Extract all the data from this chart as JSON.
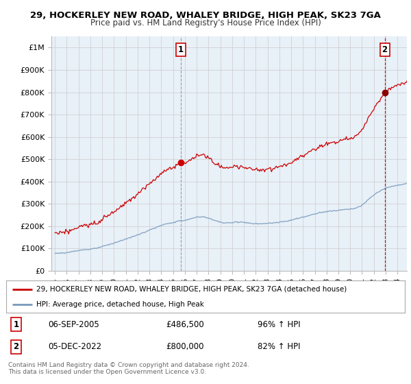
{
  "title1": "29, HOCKERLEY NEW ROAD, WHALEY BRIDGE, HIGH PEAK, SK23 7GA",
  "title2": "Price paid vs. HM Land Registry's House Price Index (HPI)",
  "ylim": [
    0,
    1050000
  ],
  "yticks": [
    0,
    100000,
    200000,
    300000,
    400000,
    500000,
    600000,
    700000,
    800000,
    900000,
    1000000
  ],
  "ytick_labels": [
    "£0",
    "£100K",
    "£200K",
    "£300K",
    "£400K",
    "£500K",
    "£600K",
    "£700K",
    "£800K",
    "£900K",
    "£1M"
  ],
  "xlim_start": 1994.7,
  "xlim_end": 2024.8,
  "xticks": [
    1995,
    1996,
    1997,
    1998,
    1999,
    2000,
    2001,
    2002,
    2003,
    2004,
    2005,
    2006,
    2007,
    2008,
    2009,
    2010,
    2011,
    2012,
    2013,
    2014,
    2015,
    2016,
    2017,
    2018,
    2019,
    2020,
    2021,
    2022,
    2023,
    2024
  ],
  "red_line_color": "#cc0000",
  "blue_line_color": "#7799bb",
  "chart_bg_color": "#e8f0f8",
  "marker1_x": 2005.67,
  "marker1_y": 486500,
  "marker2_x": 2022.92,
  "marker2_y": 800000,
  "vline1_x": 2005.67,
  "vline2_x": 2022.92,
  "legend_red_label": "29, HOCKERLEY NEW ROAD, WHALEY BRIDGE, HIGH PEAK, SK23 7GA (detached house)",
  "legend_blue_label": "HPI: Average price, detached house, High Peak",
  "annotation1_date": "06-SEP-2005",
  "annotation1_price": "£486,500",
  "annotation1_hpi": "96% ↑ HPI",
  "annotation2_date": "05-DEC-2022",
  "annotation2_price": "£800,000",
  "annotation2_hpi": "82% ↑ HPI",
  "footer": "Contains HM Land Registry data © Crown copyright and database right 2024.\nThis data is licensed under the Open Government Licence v3.0.",
  "grid_color": "#cccccc",
  "background_color": "#ffffff"
}
